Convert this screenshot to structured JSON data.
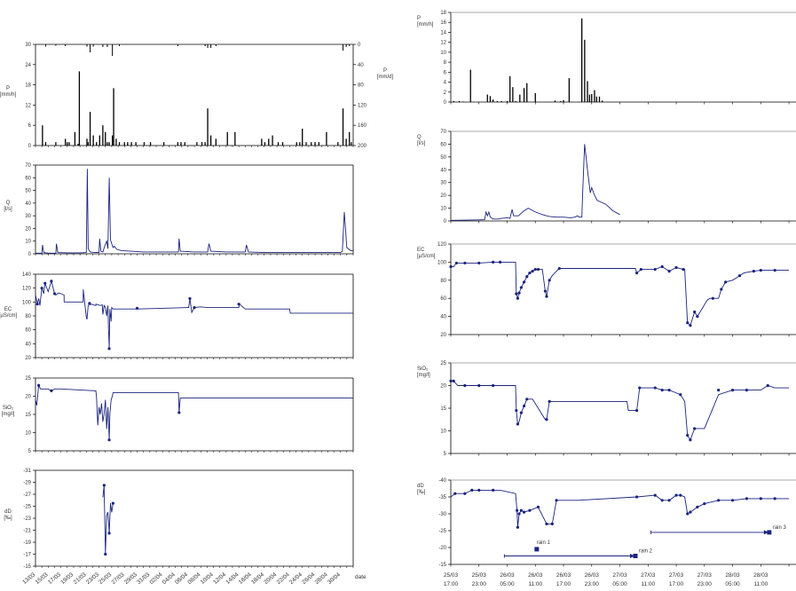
{
  "colors": {
    "line": "#1a237e",
    "axis": "#000000",
    "grid": "#8c8c8c",
    "bar": "#000000"
  },
  "chart_data": [
    {
      "id": "L_P",
      "type": "bar",
      "ylabel": "P\n[mm/h]",
      "ylabel2": "P\n[mm/d]",
      "ylim": [
        0,
        30
      ],
      "yticks": [
        "0",
        "6",
        "12",
        "18",
        "24",
        "30"
      ],
      "ylim2": [
        200,
        0
      ],
      "yticks2": [
        "0",
        "40",
        "80",
        "120",
        "160",
        "200"
      ],
      "x": [
        1.1,
        1.6,
        3.2,
        4.7,
        5.0,
        5.3,
        6.2,
        6.7,
        6.9,
        8.1,
        8.3,
        8.6,
        9.1,
        9.6,
        10.1,
        10.6,
        11.0,
        11.3,
        11.6,
        12.1,
        12.3,
        12.7,
        13.2,
        14.0,
        14.5,
        15.1,
        15.8,
        17.1,
        18.1,
        20.2,
        22.4,
        22.9,
        23.5,
        25.4,
        26.2,
        26.7,
        27.1,
        27.6,
        28.4,
        30.2,
        31.4,
        35.6,
        36.1,
        36.7,
        37.3,
        38.2,
        38.9,
        41.1,
        41.6,
        42.0,
        42.6,
        43.4,
        44.0,
        44.6,
        45.8,
        47.6,
        48.4,
        48.9,
        49.4,
        49.7
      ],
      "values": [
        6,
        1,
        1,
        2,
        1,
        1,
        4,
        0.5,
        22,
        2,
        1,
        10,
        3,
        1,
        3,
        6,
        4,
        1,
        1,
        3,
        17,
        2,
        1,
        1,
        1,
        1,
        1,
        1,
        1,
        1,
        1,
        1,
        1,
        1,
        1,
        1,
        11,
        3,
        2,
        4,
        4,
        2,
        1,
        2,
        3,
        1,
        1,
        1,
        1,
        5,
        1,
        1,
        1,
        1,
        4,
        1,
        11,
        2,
        4,
        1
      ],
      "top_x": [
        1.6,
        3.2,
        4.7,
        8.1,
        8.6,
        9.1,
        10.6,
        11.3,
        12.1,
        13.2,
        22.4,
        26.7,
        27.1,
        27.6,
        28.4,
        48.4,
        48.9,
        49.4
      ],
      "top_values": [
        2.5,
        1.5,
        2,
        2.5,
        9,
        2.5,
        3,
        3,
        13,
        2,
        2,
        2,
        4,
        4,
        2,
        7,
        3,
        2
      ]
    },
    {
      "id": "L_Q",
      "type": "line",
      "ylabel": "Q\n[l/s]",
      "ylim": [
        0,
        70
      ],
      "yticks": [
        "0",
        "10",
        "20",
        "30",
        "40",
        "50",
        "60",
        "70"
      ],
      "x": [
        0,
        1,
        1.1,
        1.3,
        2,
        3.2,
        3.3,
        3.5,
        5,
        7,
        8.0,
        8.15,
        8.3,
        8.6,
        9,
        10,
        10.1,
        10.3,
        10.6,
        10.9,
        11.2,
        11.4,
        11.6,
        11.8,
        12.0,
        12.2,
        12.4,
        12.8,
        13.5,
        15,
        17,
        20,
        22.5,
        22.6,
        22.8,
        25,
        27.1,
        27.3,
        27.6,
        30,
        33,
        33.2,
        33.5,
        36,
        38,
        40,
        44,
        46,
        48,
        48.3,
        48.6,
        49,
        49.6,
        50
      ],
      "values": [
        0.5,
        0.5,
        7,
        1,
        0.5,
        0.5,
        8,
        1,
        0.8,
        0.8,
        1,
        67,
        4,
        1.5,
        1.2,
        1,
        12,
        2,
        1.5,
        6,
        10,
        4,
        60,
        11,
        8,
        5,
        6,
        3.5,
        2.5,
        2,
        1.5,
        1.5,
        1.5,
        12,
        2,
        1.5,
        1.5,
        8,
        2,
        1.5,
        1.5,
        7,
        1.5,
        1,
        1,
        1,
        1,
        1,
        1,
        2,
        33,
        5,
        2.5,
        2.5
      ]
    },
    {
      "id": "L_EC",
      "type": "line",
      "ylabel": "EC\n[µS/cm]",
      "ylim": [
        20,
        140
      ],
      "yticks": [
        "20",
        "40",
        "60",
        "80",
        "100",
        "120",
        "140"
      ],
      "x": [
        0,
        0.3,
        0.5,
        0.7,
        1,
        1.3,
        1.5,
        2,
        2.5,
        3,
        3.2,
        3.6,
        4,
        4.5,
        4.51,
        7.5,
        7.51,
        8,
        8.1,
        8.3,
        8.5,
        8.6,
        8.7,
        9.5,
        9.51,
        10.2,
        10.5,
        10.6,
        10.8,
        11,
        11.2,
        11.4,
        11.5,
        11.6,
        11.7,
        11.9,
        12,
        12.2,
        13,
        13.5,
        16,
        20,
        24,
        24.1,
        24.3,
        24.6,
        25,
        26,
        27,
        30,
        32,
        32.1,
        33,
        36,
        38,
        40,
        40.1,
        50
      ],
      "values": [
        110,
        97,
        105,
        95,
        120,
        112,
        127,
        115,
        130,
        112,
        110,
        113,
        112,
        110,
        100,
        100,
        118,
        78,
        75,
        95,
        98,
        96,
        97,
        95,
        97,
        95,
        96,
        82,
        95,
        92,
        80,
        95,
        60,
        33,
        90,
        72,
        92,
        90,
        90,
        90,
        90,
        91,
        92,
        92,
        105,
        85,
        92,
        93,
        92,
        92,
        92,
        97,
        90,
        90,
        90,
        90,
        84,
        84
      ],
      "points_x": [
        0.3,
        1,
        1.5,
        2.5,
        3,
        8.5,
        11.6,
        16,
        24.3,
        25,
        32
      ],
      "points_y": [
        97,
        120,
        127,
        130,
        112,
        98,
        33,
        91,
        105,
        92,
        97
      ]
    },
    {
      "id": "L_SiO2",
      "type": "line",
      "ylabel": "SiO₂\n[mg/l]",
      "ylim": [
        5,
        25
      ],
      "yticks": [
        "5",
        "10",
        "15",
        "20",
        "25"
      ],
      "x": [
        0,
        0.2,
        0.5,
        0.8,
        1,
        2,
        2.5,
        3,
        3.5,
        4,
        9.5,
        9.6,
        9.8,
        10,
        10.2,
        10.4,
        10.6,
        10.8,
        11,
        11.2,
        11.4,
        11.6,
        11.7,
        11.9,
        12.1,
        12.2,
        12.5,
        20,
        22.5,
        22.6,
        22.8,
        24,
        30,
        40,
        50
      ],
      "values": [
        19,
        17.5,
        23,
        22,
        22,
        22,
        21.5,
        22,
        22,
        22,
        21.5,
        20,
        12,
        17,
        15,
        18,
        13,
        15,
        19,
        11,
        17,
        8,
        15,
        19,
        20,
        21,
        21,
        21,
        21,
        15.5,
        19.5,
        19.5,
        19.5,
        19.5,
        19.5
      ],
      "points_x": [
        0.5,
        2.5,
        11.6,
        22.6
      ],
      "points_y": [
        23,
        21.5,
        8,
        15.5
      ]
    },
    {
      "id": "L_dD",
      "type": "line",
      "ylabel": "dD\n[‰]",
      "ylim": [
        -31,
        -15
      ],
      "yticks": [
        "-15",
        "-17",
        "-19",
        "-21",
        "-23",
        "-25",
        "-27",
        "-29",
        "-31"
      ],
      "x": [
        10.6,
        10.8,
        11.0,
        11.2,
        11.4,
        11.6,
        11.8,
        12.0,
        12.2
      ],
      "values": [
        -19.5,
        -17.5,
        -29,
        -22.5,
        -22,
        -25.5,
        -20.5,
        -22,
        -20.5
      ],
      "points_x": [
        10.8,
        11.0,
        11.6,
        12.2
      ],
      "points_y": [
        -17.5,
        -29,
        -25.5,
        -20.5
      ]
    },
    {
      "id": "R_P",
      "type": "bar",
      "ylabel": "P\n[mm/h]",
      "ylim": [
        0,
        18
      ],
      "yticks": [
        "0",
        "2",
        "4",
        "6",
        "8",
        "10",
        "12",
        "14",
        "16",
        "18"
      ],
      "x": [
        0.2,
        0.6,
        0.9,
        1.4,
        2.6,
        2.8,
        3.0,
        3.3,
        3.6,
        4.0,
        4.2,
        4.4,
        4.6,
        4.9,
        5.2,
        5.4,
        6.0,
        7.4,
        7.8,
        8.0,
        8.4,
        9.3,
        9.5,
        9.7,
        9.85,
        10.0,
        10.2,
        10.35,
        10.55,
        10.75
      ],
      "values": [
        0.2,
        0.2,
        0.1,
        6.5,
        1.5,
        1.2,
        0.5,
        0.2,
        0.2,
        0.2,
        5.2,
        3,
        0.2,
        1.5,
        2.8,
        3.8,
        1.8,
        0.3,
        0.2,
        0.4,
        4.8,
        16.8,
        12.5,
        4.2,
        1.5,
        1.6,
        2.4,
        1.1,
        1.1,
        0.3
      ]
    },
    {
      "id": "R_Q",
      "type": "line",
      "ylabel": "Q\n[l/s]",
      "ylim": [
        0,
        70
      ],
      "yticks": [
        "0",
        "10",
        "20",
        "30",
        "40",
        "50",
        "60",
        "70"
      ],
      "x": [
        0,
        1,
        2,
        2.4,
        2.5,
        2.6,
        2.7,
        2.8,
        3.0,
        3.4,
        3.6,
        4.0,
        4.2,
        4.35,
        4.45,
        4.6,
        4.8,
        5.0,
        5.2,
        5.5,
        6.0,
        6.5,
        6.8,
        7.0,
        7.5,
        8.0,
        8.5,
        8.8,
        9.0,
        9.1,
        9.3,
        9.35,
        9.5,
        9.7,
        9.9,
        10.0,
        10.2,
        10.4,
        10.6,
        11.0,
        11.5,
        12.0
      ],
      "values": [
        0.5,
        0.6,
        0.8,
        1,
        7,
        4,
        7,
        3,
        1.5,
        1.5,
        2,
        2.5,
        2,
        9,
        4,
        4,
        4,
        6,
        8,
        10,
        7,
        5,
        4,
        3.5,
        3,
        3,
        2.5,
        3,
        4,
        3,
        3,
        20,
        60,
        40,
        22,
        26,
        20,
        16,
        15,
        13,
        8,
        5
      ]
    },
    {
      "id": "R_EC",
      "type": "line",
      "ylabel": "EC\n[µS/cm]",
      "ylim": [
        20,
        120
      ],
      "yticks": [
        "20",
        "40",
        "60",
        "80",
        "100",
        "120"
      ],
      "x": [
        0,
        0.2,
        0.4,
        1,
        2,
        3,
        3.5,
        4.6,
        4.65,
        4.75,
        4.85,
        5,
        5.2,
        5.4,
        5.6,
        5.8,
        6,
        6.2,
        6.5,
        6.7,
        6.8,
        7,
        7.2,
        7.5,
        7.7,
        9,
        9.5,
        13.1,
        13.2,
        13.5,
        14.5,
        15,
        15.5,
        16,
        16.5,
        16.6,
        16.8,
        17,
        17.3,
        17.5,
        18.2,
        18.4,
        18.6,
        18.8,
        19,
        19.2,
        19.5,
        20,
        20.5,
        20.8,
        21.5,
        22,
        23,
        24
      ],
      "values": [
        95,
        95,
        99,
        99,
        99,
        100,
        100,
        100,
        65,
        60,
        66,
        72,
        78,
        84,
        88,
        90,
        92,
        92,
        92,
        68,
        62,
        80,
        85,
        90,
        93,
        93,
        93,
        93,
        88,
        92,
        92,
        95,
        90,
        94,
        92,
        92,
        33,
        30,
        45,
        40,
        58,
        60,
        60,
        60,
        60,
        70,
        78,
        80,
        85,
        88,
        90,
        91,
        91,
        91
      ],
      "points_x": [
        0,
        0.4,
        1,
        2,
        3,
        3.5,
        4.65,
        4.75,
        4.85,
        5,
        5.2,
        5.4,
        5.6,
        5.8,
        6,
        6.2,
        6.7,
        6.8,
        7,
        7.7,
        13.2,
        13.5,
        14.5,
        15,
        15.5,
        16,
        16.5,
        16.8,
        17,
        17.3,
        17.5,
        18.6,
        19.2,
        19.5,
        20.5,
        21.5,
        22,
        23
      ],
      "points_y": [
        95,
        99,
        99,
        99,
        100,
        100,
        65,
        60,
        66,
        72,
        78,
        84,
        88,
        90,
        92,
        92,
        68,
        62,
        80,
        93,
        88,
        92,
        92,
        95,
        90,
        94,
        92,
        33,
        30,
        45,
        40,
        60,
        70,
        78,
        85,
        90,
        91,
        91
      ]
    },
    {
      "id": "R_SiO2",
      "type": "line",
      "ylabel": "SiO₂\n[mg/l]",
      "ylim": [
        5,
        25
      ],
      "yticks": [
        "5",
        "10",
        "15",
        "20",
        "25"
      ],
      "x": [
        0,
        0.2,
        0.5,
        1,
        2,
        3,
        3.5,
        4.6,
        4.65,
        4.75,
        4.85,
        5,
        5.2,
        5.4,
        5.6,
        5.8,
        6.7,
        6.8,
        7,
        7.7,
        12.5,
        12.6,
        13.2,
        13.4,
        14.5,
        15,
        15.5,
        16.3,
        16.5,
        16.6,
        16.8,
        17,
        17.3,
        18,
        19,
        20,
        21,
        22,
        22.5,
        23,
        24
      ],
      "values": [
        21,
        21,
        20,
        20,
        20,
        20,
        20,
        20,
        14.5,
        11.5,
        12,
        14,
        15.5,
        17,
        17,
        17,
        12.5,
        12.5,
        16.5,
        16.5,
        16.5,
        14.5,
        14.5,
        19.5,
        19.5,
        19,
        19,
        18,
        17,
        16.5,
        9,
        8,
        10.5,
        10.5,
        18,
        19,
        19,
        19,
        20,
        19.5,
        19.5
      ],
      "points_x": [
        0,
        0.2,
        1,
        2,
        3,
        4.65,
        4.75,
        5,
        5.2,
        5.4,
        6.8,
        7,
        13.2,
        13.4,
        14.5,
        15,
        15.5,
        16.3,
        16.8,
        17,
        17.3,
        19,
        20,
        21,
        22.5
      ],
      "points_y": [
        21,
        21,
        20,
        20,
        20,
        14.5,
        11.5,
        14,
        15.5,
        17,
        12.5,
        16.5,
        14.5,
        19.5,
        19.5,
        19,
        19,
        18,
        9,
        8,
        10.5,
        19,
        19,
        19,
        20
      ]
    },
    {
      "id": "R_dD",
      "type": "line",
      "ylabel": "dD\n[‰]",
      "ylim": [
        -40,
        -15
      ],
      "yticks": [
        "-15",
        "-20",
        "-25",
        "-30",
        "-35",
        "-40"
      ],
      "x": [
        0,
        0.3,
        1,
        1.5,
        2,
        3,
        3.5,
        4.6,
        4.7,
        4.75,
        4.85,
        5,
        5.2,
        5.6,
        6.2,
        6.8,
        7.2,
        7.5,
        8,
        9,
        13.2,
        14.5,
        15,
        15.5,
        16,
        16.3,
        16.6,
        16.8,
        17,
        17.5,
        18,
        19,
        20,
        21,
        22,
        23,
        24
      ],
      "values": [
        -20,
        -19,
        -19,
        -18,
        -18,
        -18,
        -18,
        -19,
        -24,
        -29,
        -25,
        -24,
        -24.5,
        -24,
        -23,
        -28,
        -28,
        -21,
        -21,
        -21,
        -20,
        -19.5,
        -21,
        -21,
        -19.5,
        -19.5,
        -20,
        -25,
        -24.5,
        -23,
        -22,
        -21,
        -21,
        -20.5,
        -20.5,
        -20.5,
        -20.5
      ],
      "points_x": [
        0.3,
        1,
        1.5,
        2,
        3,
        4.7,
        4.75,
        4.85,
        5,
        5.2,
        5.6,
        6.2,
        6.8,
        7.2,
        7.5,
        13.2,
        14.5,
        15,
        15.5,
        16,
        16.3,
        16.8,
        17,
        17.5,
        18,
        19,
        20,
        21,
        22,
        23
      ],
      "points_y": [
        -19,
        -19,
        -18,
        -18,
        -18,
        -24,
        -29,
        -25,
        -24,
        -24.5,
        -24,
        -23,
        -28,
        -28,
        -21,
        -20,
        -19.5,
        -21,
        -21,
        -19.5,
        -19.5,
        -25,
        -24.5,
        -23,
        -22,
        -21,
        -21,
        -20.5,
        -20.5,
        -20.5
      ],
      "rain_events": [
        {
          "label": "rain 1",
          "x": 6.1,
          "y": -35.5,
          "x1": 0,
          "x2": 0
        },
        {
          "label": "rain 2",
          "x": 13.1,
          "y": -37.5,
          "x1": 3.8,
          "x2": 13.1
        },
        {
          "label": "rain 3",
          "x": 22.6,
          "y": -30.5,
          "x1": 14.2,
          "x2": 22.6
        }
      ]
    }
  ],
  "x_axes": {
    "left": {
      "labels": [
        "13/03",
        "15/03",
        "17/03",
        "19/03",
        "21/03",
        "23/03",
        "25/03",
        "27/03",
        "29/03",
        "31/03",
        "02/04",
        "04/04",
        "06/04",
        "08/04",
        "10/04",
        "12/04",
        "14/04",
        "16/04",
        "18/04",
        "20/04",
        "22/04",
        "24/04",
        "26/04",
        "28/04",
        "30/04"
      ],
      "label": "date"
    },
    "right": {
      "labels_top": [
        "25/03",
        "25/03",
        "26/03",
        "26/03",
        "26/03",
        "26/03",
        "27/03",
        "27/03",
        "27/03",
        "27/03",
        "28/03",
        "28/03"
      ],
      "labels_bottom": [
        "17:00",
        "23:00",
        "05:00",
        "11:00",
        "17:00",
        "23:00",
        "05:00",
        "11:00",
        "17:00",
        "23:00",
        "05:00",
        "11:00"
      ]
    }
  }
}
